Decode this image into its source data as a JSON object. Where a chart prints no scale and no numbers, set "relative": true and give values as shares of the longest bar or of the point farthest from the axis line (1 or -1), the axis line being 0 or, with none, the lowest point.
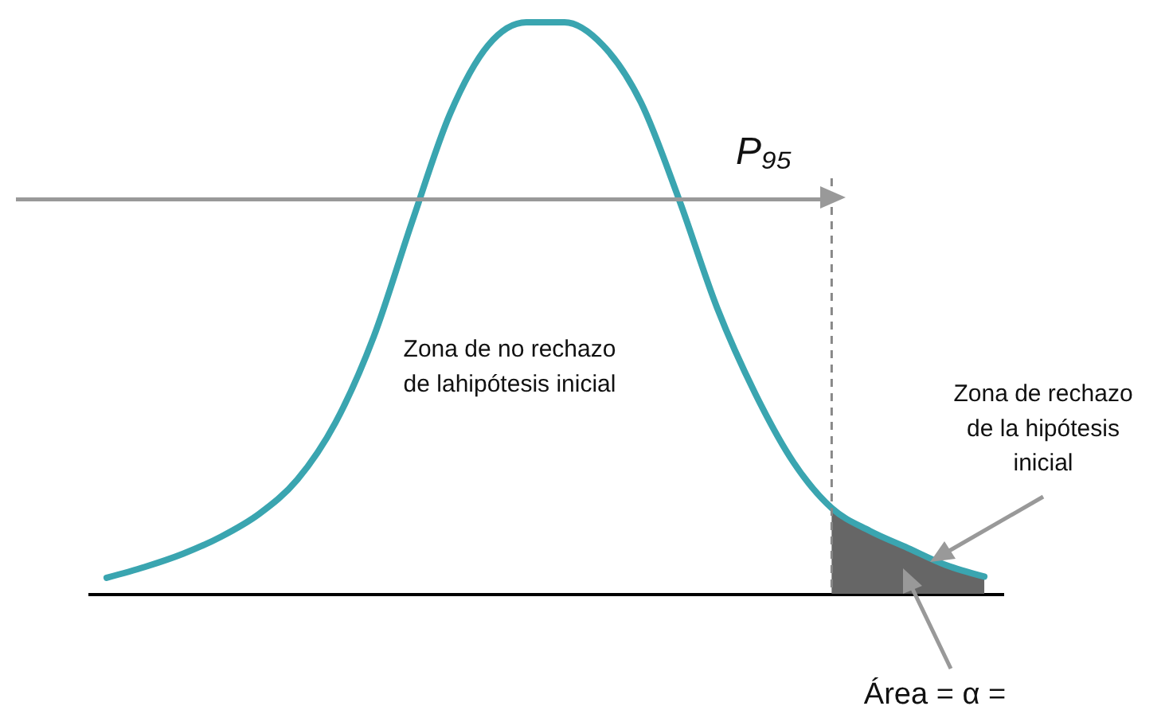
{
  "chart_data": {
    "type": "line",
    "relative": true,
    "categories": [
      null,
      null,
      null,
      null,
      null,
      null,
      null,
      null,
      null,
      null,
      null,
      null,
      null,
      null,
      null,
      null,
      null,
      null,
      null,
      null,
      null,
      null,
      null,
      null
    ],
    "series": [
      {
        "color": "#3aa5b0",
        "values": [
          0.028,
          0.047,
          0.07,
          0.1,
          0.14,
          0.2,
          0.3,
          0.45,
          0.65,
          0.84,
          0.96,
          1,
          1,
          0.96,
          0.86,
          0.69,
          0.5,
          0.35,
          0.23,
          0.15,
          0.11,
          0.08,
          0.05,
          0.03
        ]
      },
      {
        "type": "area",
        "color": "#666666",
        "values": [
          null,
          null,
          null,
          null,
          null,
          null,
          null,
          null,
          null,
          null,
          null,
          null,
          null,
          null,
          null,
          null,
          null,
          null,
          null,
          0.15,
          0.11,
          0.08,
          0.05,
          0.03
        ]
      }
    ],
    "ref_lines": [
      {
        "axis": "y",
        "value": 0.69,
        "color": "#999999"
      }
    ],
    "annotations": [
      "P₉₅",
      "Zona de no rechazo\nde lahipótesis inicial",
      "Zona de rechazo\nde la hipótesis\ninicial",
      "Área = α ="
    ]
  }
}
